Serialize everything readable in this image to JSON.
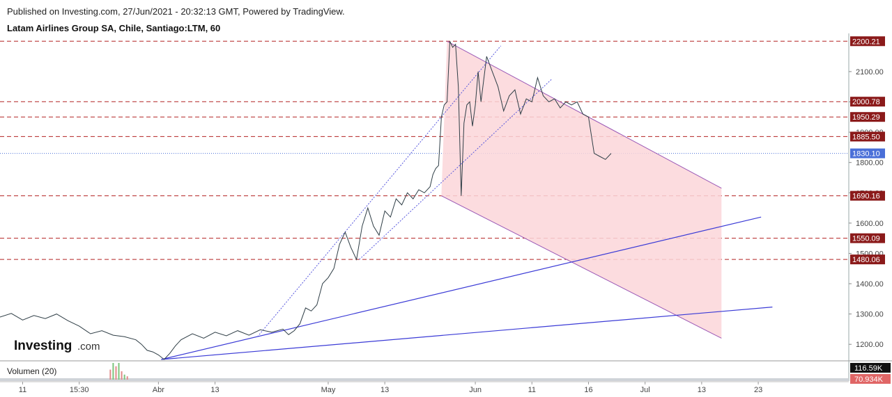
{
  "header": {
    "published": "Published on Investing.com, 27/Jun/2021 - 20:32:13 GMT, Powered by TradingView.",
    "instrument": "Latam Airlines Group SA, Chile, Santiago:LTM, 60"
  },
  "logo": {
    "name": "Investing",
    "suffix": ".com"
  },
  "volume": {
    "label": "Volumen (20)",
    "value_tag": "116.59K",
    "value_tag2": "70.934K"
  },
  "colors": {
    "price_line": "#2f3e46",
    "dashed_level": "#b22222",
    "level_tag": "#8b1a1a",
    "current_level": "#4a6fd8",
    "channel_fill": "#fcd6d9",
    "channel_line": "#9b59b6",
    "trend_line": "#3a3ad6",
    "fan_line": "#5555dd"
  },
  "chart_data": {
    "type": "line",
    "title": "Latam Airlines Group SA, Chile, Santiago:LTM, 60",
    "ylim": [
      1150,
      2210
    ],
    "y_ticks": [
      1200,
      1300,
      1400,
      1500,
      1600,
      1700,
      1800,
      1900,
      2000,
      2100
    ],
    "y_tick_labels": [
      "1200.00",
      "1300.00",
      "1400.00",
      "1500.00",
      "1600.00",
      "1700.00",
      "1800.00",
      "1900.00",
      "2000.00",
      "2100.00"
    ],
    "x_ticks": [
      {
        "label": "11",
        "t": 0.8
      },
      {
        "label": "15:30",
        "t": 2.8
      },
      {
        "label": "Abr",
        "t": 5.6
      },
      {
        "label": "13",
        "t": 7.6
      },
      {
        "label": "May",
        "t": 11.6
      },
      {
        "label": "13",
        "t": 13.6
      },
      {
        "label": "Jun",
        "t": 16.8
      },
      {
        "label": "11",
        "t": 18.8
      },
      {
        "label": "16",
        "t": 20.8
      },
      {
        "label": "Jul",
        "t": 22.8
      },
      {
        "label": "13",
        "t": 24.8
      },
      {
        "label": "23",
        "t": 26.8
      }
    ],
    "xlim": [
      0,
      30
    ],
    "price_series": {
      "t": [
        0.0,
        0.4,
        0.8,
        1.2,
        1.6,
        2.0,
        2.4,
        2.8,
        3.2,
        3.6,
        4.0,
        4.4,
        4.8,
        5.0,
        5.2,
        5.4,
        5.6,
        5.8,
        6.0,
        6.2,
        6.4,
        6.8,
        7.2,
        7.6,
        8.0,
        8.4,
        8.8,
        9.2,
        9.6,
        10.0,
        10.2,
        10.4,
        10.6,
        10.8,
        11.0,
        11.2,
        11.4,
        11.6,
        11.8,
        12.0,
        12.2,
        12.4,
        12.6,
        12.8,
        13.0,
        13.2,
        13.4,
        13.6,
        13.8,
        14.0,
        14.2,
        14.4,
        14.6,
        14.8,
        15.0,
        15.2,
        15.3,
        15.4,
        15.5,
        15.6,
        15.7,
        15.8,
        15.9,
        16.0,
        16.1,
        16.2,
        16.3,
        16.4,
        16.5,
        16.6,
        16.7,
        16.8,
        16.9,
        17.0,
        17.2,
        17.4,
        17.6,
        17.8,
        18.0,
        18.2,
        18.4,
        18.6,
        18.8,
        19.0,
        19.2,
        19.4,
        19.6,
        19.8,
        20.0,
        20.2,
        20.4,
        20.6,
        20.8,
        21.0,
        21.2,
        21.4,
        21.6
      ],
      "y": [
        1290,
        1302,
        1280,
        1295,
        1285,
        1300,
        1278,
        1260,
        1235,
        1245,
        1230,
        1225,
        1215,
        1200,
        1180,
        1175,
        1165,
        1150,
        1170,
        1195,
        1215,
        1235,
        1220,
        1240,
        1228,
        1245,
        1230,
        1248,
        1240,
        1250,
        1232,
        1245,
        1268,
        1320,
        1310,
        1330,
        1400,
        1420,
        1450,
        1530,
        1570,
        1520,
        1480,
        1590,
        1650,
        1590,
        1560,
        1640,
        1620,
        1680,
        1660,
        1700,
        1680,
        1710,
        1700,
        1720,
        1760,
        1780,
        1790,
        1950,
        1990,
        2000,
        2200,
        2180,
        2190,
        2050,
        1690,
        1930,
        1990,
        2000,
        1920,
        1990,
        2100,
        2000,
        2150,
        2100,
        2050,
        1970,
        2020,
        2040,
        1960,
        2010,
        2000,
        2080,
        2020,
        2000,
        2010,
        1980,
        2000,
        1990,
        2000,
        1960,
        1950,
        1830,
        1820,
        1810,
        1830
      ]
    },
    "levels": [
      {
        "value": 2200.21,
        "label": "2200.21"
      },
      {
        "value": 2000.78,
        "label": "2000.78"
      },
      {
        "value": 1950.29,
        "label": "1950.29"
      },
      {
        "value": 1885.5,
        "label": "1885.50"
      },
      {
        "value": 1690.16,
        "label": "1690.16"
      },
      {
        "value": 1550.09,
        "label": "1550.09"
      },
      {
        "value": 1480.06,
        "label": "1480.06"
      }
    ],
    "current_price": {
      "value": 1830.1,
      "label": "1830.10"
    },
    "channel": {
      "upper": [
        {
          "t": 15.8,
          "y": 2200
        },
        {
          "t": 25.5,
          "y": 1715
        }
      ],
      "lower": [
        {
          "t": 15.6,
          "y": 1690
        },
        {
          "t": 25.5,
          "y": 1220
        }
      ]
    },
    "trend_lines": [
      {
        "from": {
          "t": 5.7,
          "y": 1150
        },
        "to": {
          "t": 26.9,
          "y": 1620
        }
      },
      {
        "from": {
          "t": 5.7,
          "y": 1150
        },
        "to": {
          "t": 27.3,
          "y": 1323
        }
      }
    ],
    "fan_lines": [
      {
        "from": {
          "t": 9.1,
          "y": 1225
        },
        "to": {
          "t": 17.7,
          "y": 2185
        }
      },
      {
        "from": {
          "t": 12.7,
          "y": 1480
        },
        "to": {
          "t": 19.5,
          "y": 2075
        }
      }
    ],
    "volume_bars": {
      "t": [
        3.9,
        4.0,
        4.1,
        4.2,
        4.3,
        4.4,
        4.5
      ],
      "v": [
        0.6,
        1.0,
        0.8,
        1.0,
        0.5,
        0.3,
        0.2
      ]
    }
  }
}
